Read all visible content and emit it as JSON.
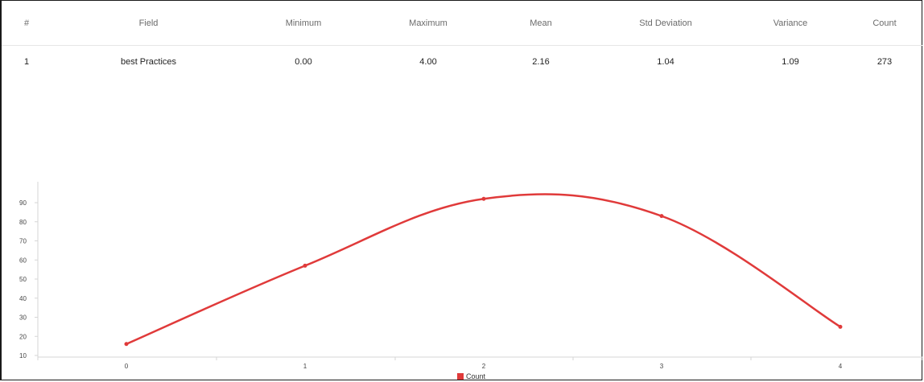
{
  "table": {
    "headers": [
      "#",
      "Field",
      "Minimum",
      "Maximum",
      "Mean",
      "Std Deviation",
      "Variance",
      "Count"
    ],
    "rows": [
      [
        "1",
        "best Practices",
        "0.00",
        "4.00",
        "2.16",
        "1.04",
        "1.09",
        "273"
      ]
    ]
  },
  "chart_data": {
    "type": "line",
    "x": [
      0,
      1,
      2,
      3,
      4
    ],
    "x_tick_labels": [
      "0",
      "1",
      "2",
      "3",
      "4"
    ],
    "y_tick_labels": [
      "10",
      "20",
      "30",
      "40",
      "50",
      "60",
      "70",
      "80",
      "90"
    ],
    "ylim": [
      8,
      100
    ],
    "series": [
      {
        "name": "Count",
        "values": [
          16,
          57,
          92,
          83,
          25
        ],
        "color": "#e03a3a"
      }
    ],
    "legend": {
      "position": "bottom-center",
      "label": "Count"
    },
    "grid": false,
    "smooth": true
  }
}
